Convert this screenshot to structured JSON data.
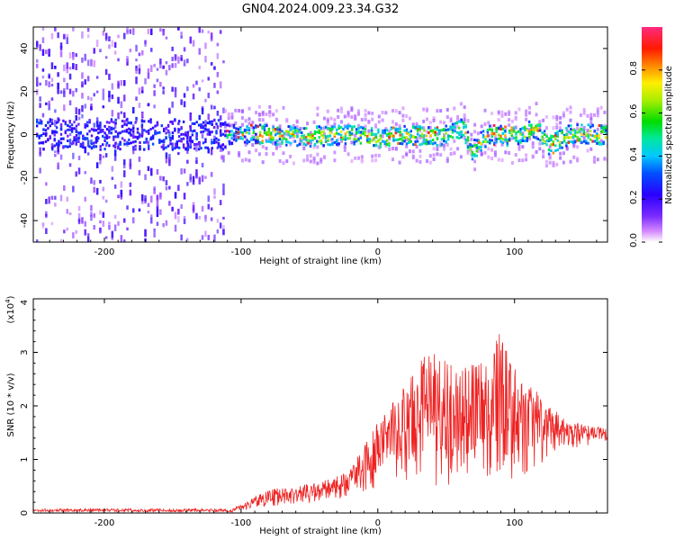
{
  "title": "GN04.2024.009.23.34.G32",
  "colors": {
    "snr_line": "#ee2222",
    "frame": "#000000",
    "background": "#ffffff"
  },
  "chart_data": [
    {
      "type": "heatmap",
      "title": "GN04.2024.009.23.34.G32",
      "xlabel": "Height of straight line (km)",
      "ylabel": "Frequency (Hz)",
      "xlim": [
        -252,
        168
      ],
      "ylim": [
        -50,
        50
      ],
      "x_ticks": [
        -200,
        -100,
        0,
        100
      ],
      "y_ticks": [
        -40,
        -20,
        0,
        20,
        40
      ],
      "colorbar": {
        "label": "Normalized spectral amplitude",
        "range": [
          0,
          1
        ],
        "ticks": [
          0.0,
          0.2,
          0.4,
          0.6,
          0.8
        ],
        "colormap": "rainbow (white-violet-blue-cyan-green-yellow-red-pink)"
      },
      "ridge": {
        "description": "Spectral power concentrated near 0 Hz; noisy scatter over full frequency range for heights below about -110 km",
        "centerline": [
          {
            "x": -110,
            "y": 0
          },
          {
            "x": -80,
            "y": 0
          },
          {
            "x": -50,
            "y": -1
          },
          {
            "x": -20,
            "y": 0
          },
          {
            "x": 0,
            "y": -2
          },
          {
            "x": 20,
            "y": 0
          },
          {
            "x": 45,
            "y": -1
          },
          {
            "x": 62,
            "y": 3
          },
          {
            "x": 68,
            "y": -8
          },
          {
            "x": 80,
            "y": 0
          },
          {
            "x": 100,
            "y": -1
          },
          {
            "x": 115,
            "y": 3
          },
          {
            "x": 125,
            "y": -5
          },
          {
            "x": 140,
            "y": 0
          },
          {
            "x": 168,
            "y": 0
          }
        ]
      },
      "grid": false
    },
    {
      "type": "line",
      "xlabel": "Height of straight line (km)",
      "ylabel": "SNR (10 * v/v)",
      "y_multiplier_label": "(x10",
      "y_multiplier_exp": "4",
      "xlim": [
        -252,
        168
      ],
      "ylim": [
        0,
        4
      ],
      "x_ticks": [
        -200,
        -100,
        0,
        100
      ],
      "y_ticks": [
        0,
        1,
        2,
        3,
        4
      ],
      "envelope": [
        {
          "x": -252,
          "y": 0.03
        },
        {
          "x": -200,
          "y": 0.06
        },
        {
          "x": -150,
          "y": 0.04
        },
        {
          "x": -110,
          "y": 0.05
        },
        {
          "x": -100,
          "y": 0.15
        },
        {
          "x": -80,
          "y": 0.45
        },
        {
          "x": -60,
          "y": 0.5
        },
        {
          "x": -40,
          "y": 0.6
        },
        {
          "x": -20,
          "y": 0.8
        },
        {
          "x": -10,
          "y": 1.3
        },
        {
          "x": 0,
          "y": 1.7
        },
        {
          "x": 20,
          "y": 2.4
        },
        {
          "x": 35,
          "y": 3.1
        },
        {
          "x": 45,
          "y": 2.9
        },
        {
          "x": 60,
          "y": 2.8
        },
        {
          "x": 80,
          "y": 3.0
        },
        {
          "x": 90,
          "y": 3.4
        },
        {
          "x": 100,
          "y": 2.7
        },
        {
          "x": 120,
          "y": 2.2
        },
        {
          "x": 140,
          "y": 1.7
        },
        {
          "x": 168,
          "y": 1.6
        }
      ],
      "baseline": [
        {
          "x": -252,
          "y": 0.0
        },
        {
          "x": -110,
          "y": 0.0
        },
        {
          "x": -80,
          "y": 0.12
        },
        {
          "x": -40,
          "y": 0.2
        },
        {
          "x": -10,
          "y": 0.35
        },
        {
          "x": 10,
          "y": 0.6
        },
        {
          "x": 40,
          "y": 0.4
        },
        {
          "x": 100,
          "y": 0.6
        },
        {
          "x": 130,
          "y": 1.1
        },
        {
          "x": 168,
          "y": 1.35
        }
      ],
      "grid": false
    }
  ]
}
